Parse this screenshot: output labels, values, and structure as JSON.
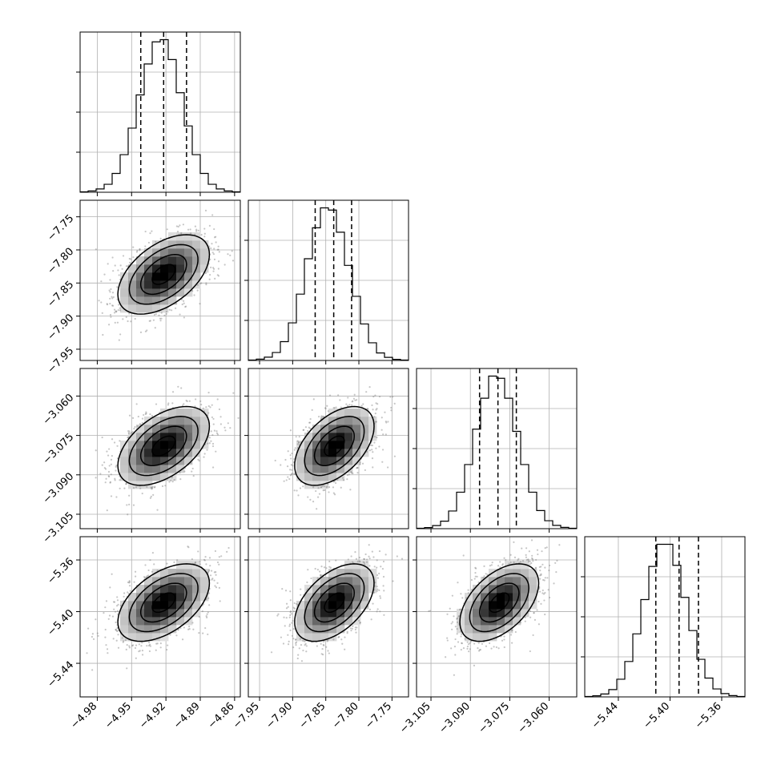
{
  "chart_data": {
    "type": "corner",
    "title": "",
    "grid": true,
    "colors": {
      "axes": "#000000",
      "grid": "#b0b0b0",
      "scatter": "#808080",
      "density_dark": "#000000",
      "density_light": "#ffffff"
    },
    "parameters": [
      {
        "name": "",
        "mean": -4.922,
        "std": 0.02,
        "range": [
          -4.995,
          -4.855
        ],
        "ticks": [
          -4.98,
          -4.95,
          -4.92,
          -4.89,
          -4.86
        ],
        "tick_labels": [
          "−4.98",
          "−4.95",
          "−4.92",
          "−4.89",
          "−4.86"
        ],
        "quantiles": [
          -4.942,
          -4.922,
          -4.902
        ]
      },
      {
        "name": "",
        "mean": -7.837,
        "std": 0.03,
        "range": [
          -7.967,
          -7.725
        ],
        "ticks": [
          -7.95,
          -7.9,
          -7.85,
          -7.8,
          -7.75
        ],
        "tick_labels": [
          "−7.95",
          "−7.90",
          "−7.85",
          "−7.80",
          "−7.75"
        ],
        "quantiles": [
          -7.866,
          -7.838,
          -7.811
        ]
      },
      {
        "name": "",
        "mean": -3.079,
        "std": 0.0075,
        "range": [
          -3.1105,
          -3.0495
        ],
        "ticks": [
          -3.105,
          -3.09,
          -3.075,
          -3.06
        ],
        "tick_labels": [
          "−3.105",
          "−3.090",
          "−3.075",
          "−3.060"
        ],
        "quantiles": [
          -3.0865,
          -3.0795,
          -3.0725
        ]
      },
      {
        "name": "",
        "mean": -5.393,
        "std": 0.015,
        "range": [
          -5.466,
          -5.342
        ],
        "ticks": [
          -5.44,
          -5.4,
          -5.36
        ],
        "tick_labels": [
          "−5.44",
          "−5.40",
          "−5.36"
        ],
        "quantiles": [
          -5.411,
          -5.393,
          -5.378
        ]
      }
    ],
    "correlation": 0.5,
    "hist_bins": 20,
    "density_bins": 20,
    "contour_levels": [
      0.5,
      1.0,
      1.5,
      2.0
    ],
    "histograms": [
      {
        "counts": [
          2,
          6,
          15,
          36,
          85,
          170,
          290,
          440,
          580,
          680,
          690,
          600,
          450,
          300,
          170,
          85,
          36,
          15,
          6,
          2
        ]
      },
      {
        "counts": [
          2,
          6,
          15,
          36,
          85,
          170,
          300,
          460,
          600,
          690,
          680,
          580,
          430,
          290,
          165,
          80,
          34,
          14,
          5,
          2
        ]
      },
      {
        "counts": [
          2,
          5,
          14,
          34,
          80,
          165,
          290,
          450,
          590,
          690,
          680,
          590,
          440,
          290,
          165,
          82,
          36,
          15,
          6,
          2
        ]
      },
      {
        "counts": [
          2,
          5,
          13,
          33,
          80,
          160,
          285,
          440,
          590,
          690,
          690,
          595,
          450,
          300,
          170,
          85,
          36,
          15,
          6,
          2
        ]
      }
    ]
  }
}
